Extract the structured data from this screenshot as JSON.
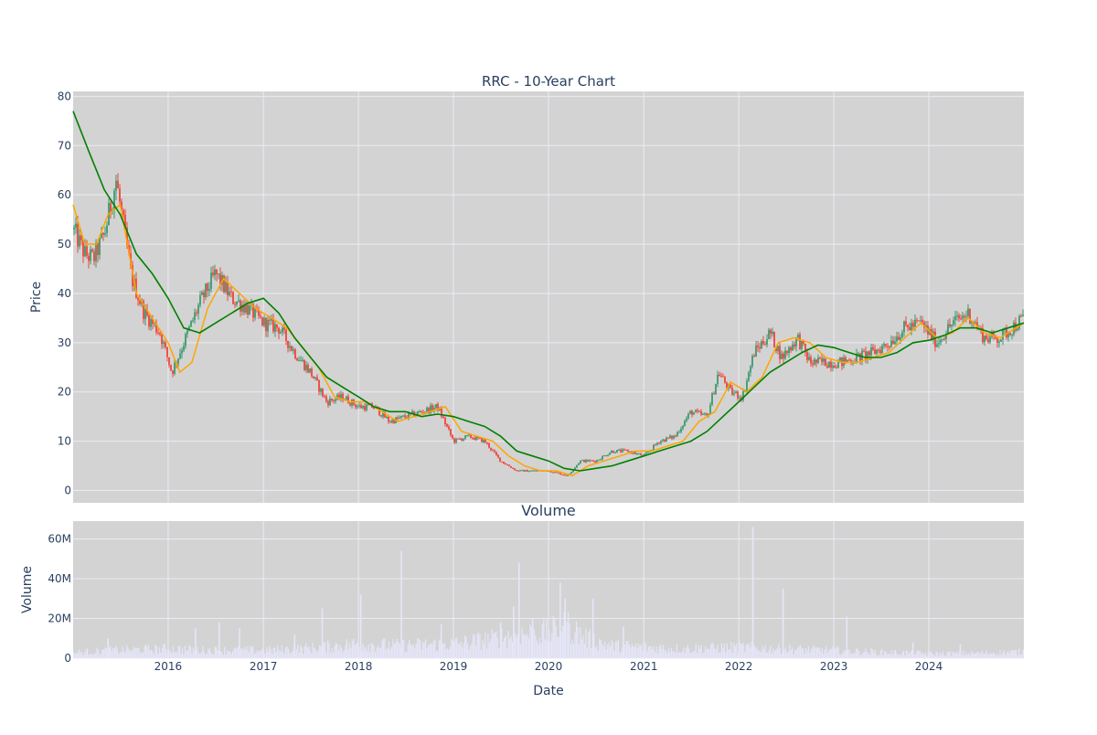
{
  "colors": {
    "plot_bg": "#d3d3d3",
    "grid": "#ebebf5",
    "up": "#3d9970",
    "down": "#f0443a",
    "ma_short": "#ffa500",
    "ma_long": "#008000",
    "volume": "#e6e6fa",
    "text": "#2a3f5f"
  },
  "chart_data": [
    {
      "type": "candlestick",
      "title": "RRC - 10-Year Chart",
      "xlabel": "",
      "ylabel": "Price",
      "xlim": [
        "2015-01-01",
        "2024-12-31"
      ],
      "ylim": [
        -2.5,
        81
      ],
      "y_ticks": [
        0,
        10,
        20,
        30,
        40,
        50,
        60,
        70,
        80
      ],
      "grid": true,
      "legend": "none",
      "series": [
        {
          "kind": "ohlc_close_path",
          "color_up": "#3d9970",
          "color_down": "#f0443a",
          "dates": [
            "2015-01-01",
            "2015-02-15",
            "2015-03-20",
            "2015-05-01",
            "2015-06-15",
            "2015-08-15",
            "2015-10-01",
            "2015-12-01",
            "2016-01-15",
            "2016-03-01",
            "2016-05-01",
            "2016-07-01",
            "2016-09-01",
            "2016-11-01",
            "2017-01-01",
            "2017-03-01",
            "2017-05-01",
            "2017-07-01",
            "2017-09-01",
            "2017-11-01",
            "2018-01-01",
            "2018-03-01",
            "2018-05-01",
            "2018-07-01",
            "2018-09-01",
            "2018-11-01",
            "2019-01-01",
            "2019-03-01",
            "2019-05-01",
            "2019-07-01",
            "2019-09-01",
            "2019-11-01",
            "2020-01-01",
            "2020-03-15",
            "2020-05-01",
            "2020-07-01",
            "2020-09-01",
            "2020-11-01",
            "2021-01-01",
            "2021-03-01",
            "2021-05-01",
            "2021-07-01",
            "2021-09-01",
            "2021-10-15",
            "2021-12-01",
            "2022-01-15",
            "2022-03-01",
            "2022-05-01",
            "2022-06-15",
            "2022-08-15",
            "2022-10-01",
            "2022-12-01",
            "2023-02-01",
            "2023-04-01",
            "2023-06-01",
            "2023-08-01",
            "2023-10-01",
            "2023-12-01",
            "2024-02-01",
            "2024-04-01",
            "2024-06-01",
            "2024-08-01",
            "2024-10-01",
            "2024-12-31"
          ],
          "close": [
            53,
            48,
            47,
            52,
            63,
            43,
            36,
            32,
            24,
            30,
            38,
            44,
            39,
            37,
            34,
            33,
            28,
            24,
            18,
            19,
            17,
            17,
            14,
            15,
            16,
            17,
            10,
            11,
            10,
            6,
            4,
            4,
            4,
            3,
            6,
            6,
            8,
            8,
            7,
            10,
            11,
            16,
            15,
            24,
            20,
            19,
            28,
            32,
            27,
            31,
            26,
            26,
            26,
            27,
            28,
            30,
            33,
            34,
            30,
            34,
            36,
            31,
            31,
            35
          ]
        },
        {
          "name": "",
          "kind": "ma_short",
          "color": "#ffa500",
          "dates": [
            "2015-01-01",
            "2015-02-15",
            "2015-04-01",
            "2015-05-15",
            "2015-07-01",
            "2015-09-01",
            "2015-11-01",
            "2016-01-01",
            "2016-02-15",
            "2016-04-01",
            "2016-06-01",
            "2016-08-01",
            "2016-10-01",
            "2016-12-01",
            "2017-02-01",
            "2017-04-01",
            "2017-06-01",
            "2017-08-01",
            "2017-10-01",
            "2017-12-01",
            "2018-02-01",
            "2018-04-01",
            "2018-06-01",
            "2018-08-01",
            "2018-10-01",
            "2018-12-01",
            "2019-02-01",
            "2019-04-01",
            "2019-06-01",
            "2019-08-01",
            "2019-10-01",
            "2019-12-01",
            "2020-02-01",
            "2020-04-01",
            "2020-06-01",
            "2020-08-01",
            "2020-10-01",
            "2020-12-01",
            "2021-02-01",
            "2021-04-01",
            "2021-06-01",
            "2021-08-01",
            "2021-10-01",
            "2021-12-01",
            "2022-02-01",
            "2022-04-01",
            "2022-06-01",
            "2022-08-01",
            "2022-10-01",
            "2022-12-01",
            "2023-02-01",
            "2023-04-01",
            "2023-06-01",
            "2023-08-01",
            "2023-10-01",
            "2023-12-01",
            "2024-02-01",
            "2024-04-01",
            "2024-06-01",
            "2024-08-01",
            "2024-10-01",
            "2024-12-31"
          ],
          "values": [
            58,
            50,
            50,
            56,
            58,
            40,
            35,
            30,
            24,
            26,
            37,
            43,
            40,
            37,
            35,
            33,
            29,
            25,
            19,
            18,
            18,
            16,
            14,
            15,
            16,
            17,
            12,
            11,
            10,
            7,
            5,
            4,
            4,
            3,
            5,
            6,
            7,
            8,
            8,
            9,
            10,
            14,
            16,
            22,
            20,
            23,
            30,
            31,
            30,
            27,
            26,
            26,
            27,
            28,
            31,
            34,
            31,
            32,
            35,
            32,
            31,
            34
          ]
        },
        {
          "name": "",
          "kind": "ma_long",
          "color": "#008000",
          "dates": [
            "2015-01-01",
            "2015-03-01",
            "2015-05-01",
            "2015-07-01",
            "2015-09-01",
            "2015-11-01",
            "2016-01-01",
            "2016-03-01",
            "2016-05-01",
            "2016-07-01",
            "2016-09-01",
            "2016-11-01",
            "2017-01-01",
            "2017-03-01",
            "2017-05-01",
            "2017-07-01",
            "2017-09-01",
            "2017-11-01",
            "2018-01-01",
            "2018-03-01",
            "2018-05-01",
            "2018-07-01",
            "2018-09-01",
            "2018-11-01",
            "2019-01-01",
            "2019-03-01",
            "2019-05-01",
            "2019-07-01",
            "2019-09-01",
            "2019-11-01",
            "2020-01-01",
            "2020-03-01",
            "2020-05-01",
            "2020-07-01",
            "2020-09-01",
            "2020-11-01",
            "2021-01-01",
            "2021-03-01",
            "2021-05-01",
            "2021-07-01",
            "2021-09-01",
            "2021-11-01",
            "2022-01-01",
            "2022-03-01",
            "2022-05-01",
            "2022-07-01",
            "2022-09-01",
            "2022-11-01",
            "2023-01-01",
            "2023-03-01",
            "2023-05-01",
            "2023-07-01",
            "2023-09-01",
            "2023-11-01",
            "2024-01-01",
            "2024-03-01",
            "2024-05-01",
            "2024-07-01",
            "2024-09-01",
            "2024-11-01",
            "2024-12-31"
          ],
          "values": [
            77,
            69,
            61,
            56,
            48,
            44,
            39,
            33,
            32,
            34,
            36,
            38,
            39,
            36,
            31,
            27,
            23,
            21,
            19,
            17,
            16,
            16,
            15,
            15.5,
            15,
            14,
            13,
            11,
            8,
            7,
            6,
            4.5,
            4,
            4.5,
            5,
            6,
            7,
            8,
            9,
            10,
            12,
            15,
            18,
            21,
            24,
            26,
            28,
            29.5,
            29,
            28,
            27,
            27,
            28,
            30,
            30.5,
            31.5,
            33,
            33,
            32,
            33,
            34
          ]
        }
      ]
    },
    {
      "type": "bar",
      "title": "Volume",
      "xlabel": "Date",
      "ylabel": "Volume",
      "xlim": [
        "2015-01-01",
        "2024-12-31"
      ],
      "ylim": [
        0,
        69000000
      ],
      "y_ticks": [
        0,
        20000000,
        40000000,
        60000000
      ],
      "y_tick_labels": [
        "0",
        "20M",
        "40M",
        "60M"
      ],
      "x_ticks": [
        "2016-01-01",
        "2017-01-01",
        "2018-01-01",
        "2019-01-01",
        "2020-01-01",
        "2021-01-01",
        "2022-01-01",
        "2023-01-01",
        "2024-01-01"
      ],
      "x_tick_labels": [
        "2016",
        "2017",
        "2018",
        "2019",
        "2020",
        "2021",
        "2022",
        "2023",
        "2024"
      ],
      "grid": true,
      "base_dates": [
        "2015-01-01",
        "2015-06-01",
        "2016-01-01",
        "2016-06-01",
        "2017-01-01",
        "2017-06-01",
        "2018-01-01",
        "2018-06-01",
        "2019-01-01",
        "2019-06-01",
        "2019-09-01",
        "2020-01-01",
        "2020-03-15",
        "2020-06-01",
        "2020-09-01",
        "2021-01-01",
        "2021-06-01",
        "2022-01-01",
        "2022-06-01",
        "2023-01-01",
        "2023-06-01",
        "2024-01-01",
        "2024-06-01",
        "2024-12-31"
      ],
      "base_values": [
        3500000,
        5000000,
        6000000,
        5000000,
        5000000,
        6000000,
        9000000,
        8000000,
        9000000,
        12000000,
        15000000,
        16000000,
        20000000,
        12000000,
        8000000,
        7000000,
        6000000,
        7000000,
        6000000,
        5000000,
        4000000,
        3000000,
        3000000,
        4000000
      ],
      "spikes": [
        {
          "date": "2015-05-15",
          "value": 10000000
        },
        {
          "date": "2016-04-15",
          "value": 15000000
        },
        {
          "date": "2016-07-15",
          "value": 18000000
        },
        {
          "date": "2016-10-01",
          "value": 15000000
        },
        {
          "date": "2017-05-01",
          "value": 12000000
        },
        {
          "date": "2017-08-15",
          "value": 25000000
        },
        {
          "date": "2018-01-10",
          "value": 32000000
        },
        {
          "date": "2018-06-15",
          "value": 54000000
        },
        {
          "date": "2018-11-15",
          "value": 17000000
        },
        {
          "date": "2019-07-01",
          "value": 18000000
        },
        {
          "date": "2019-08-20",
          "value": 26000000
        },
        {
          "date": "2019-09-10",
          "value": 48000000
        },
        {
          "date": "2019-11-01",
          "value": 20000000
        },
        {
          "date": "2020-02-15",
          "value": 38000000
        },
        {
          "date": "2020-03-05",
          "value": 30000000
        },
        {
          "date": "2020-06-20",
          "value": 30000000
        },
        {
          "date": "2020-10-15",
          "value": 16000000
        },
        {
          "date": "2022-02-24",
          "value": 66000000
        },
        {
          "date": "2022-06-20",
          "value": 35000000
        },
        {
          "date": "2023-02-20",
          "value": 21000000
        },
        {
          "date": "2023-11-01",
          "value": 8000000
        },
        {
          "date": "2024-05-01",
          "value": 7000000
        }
      ]
    }
  ]
}
